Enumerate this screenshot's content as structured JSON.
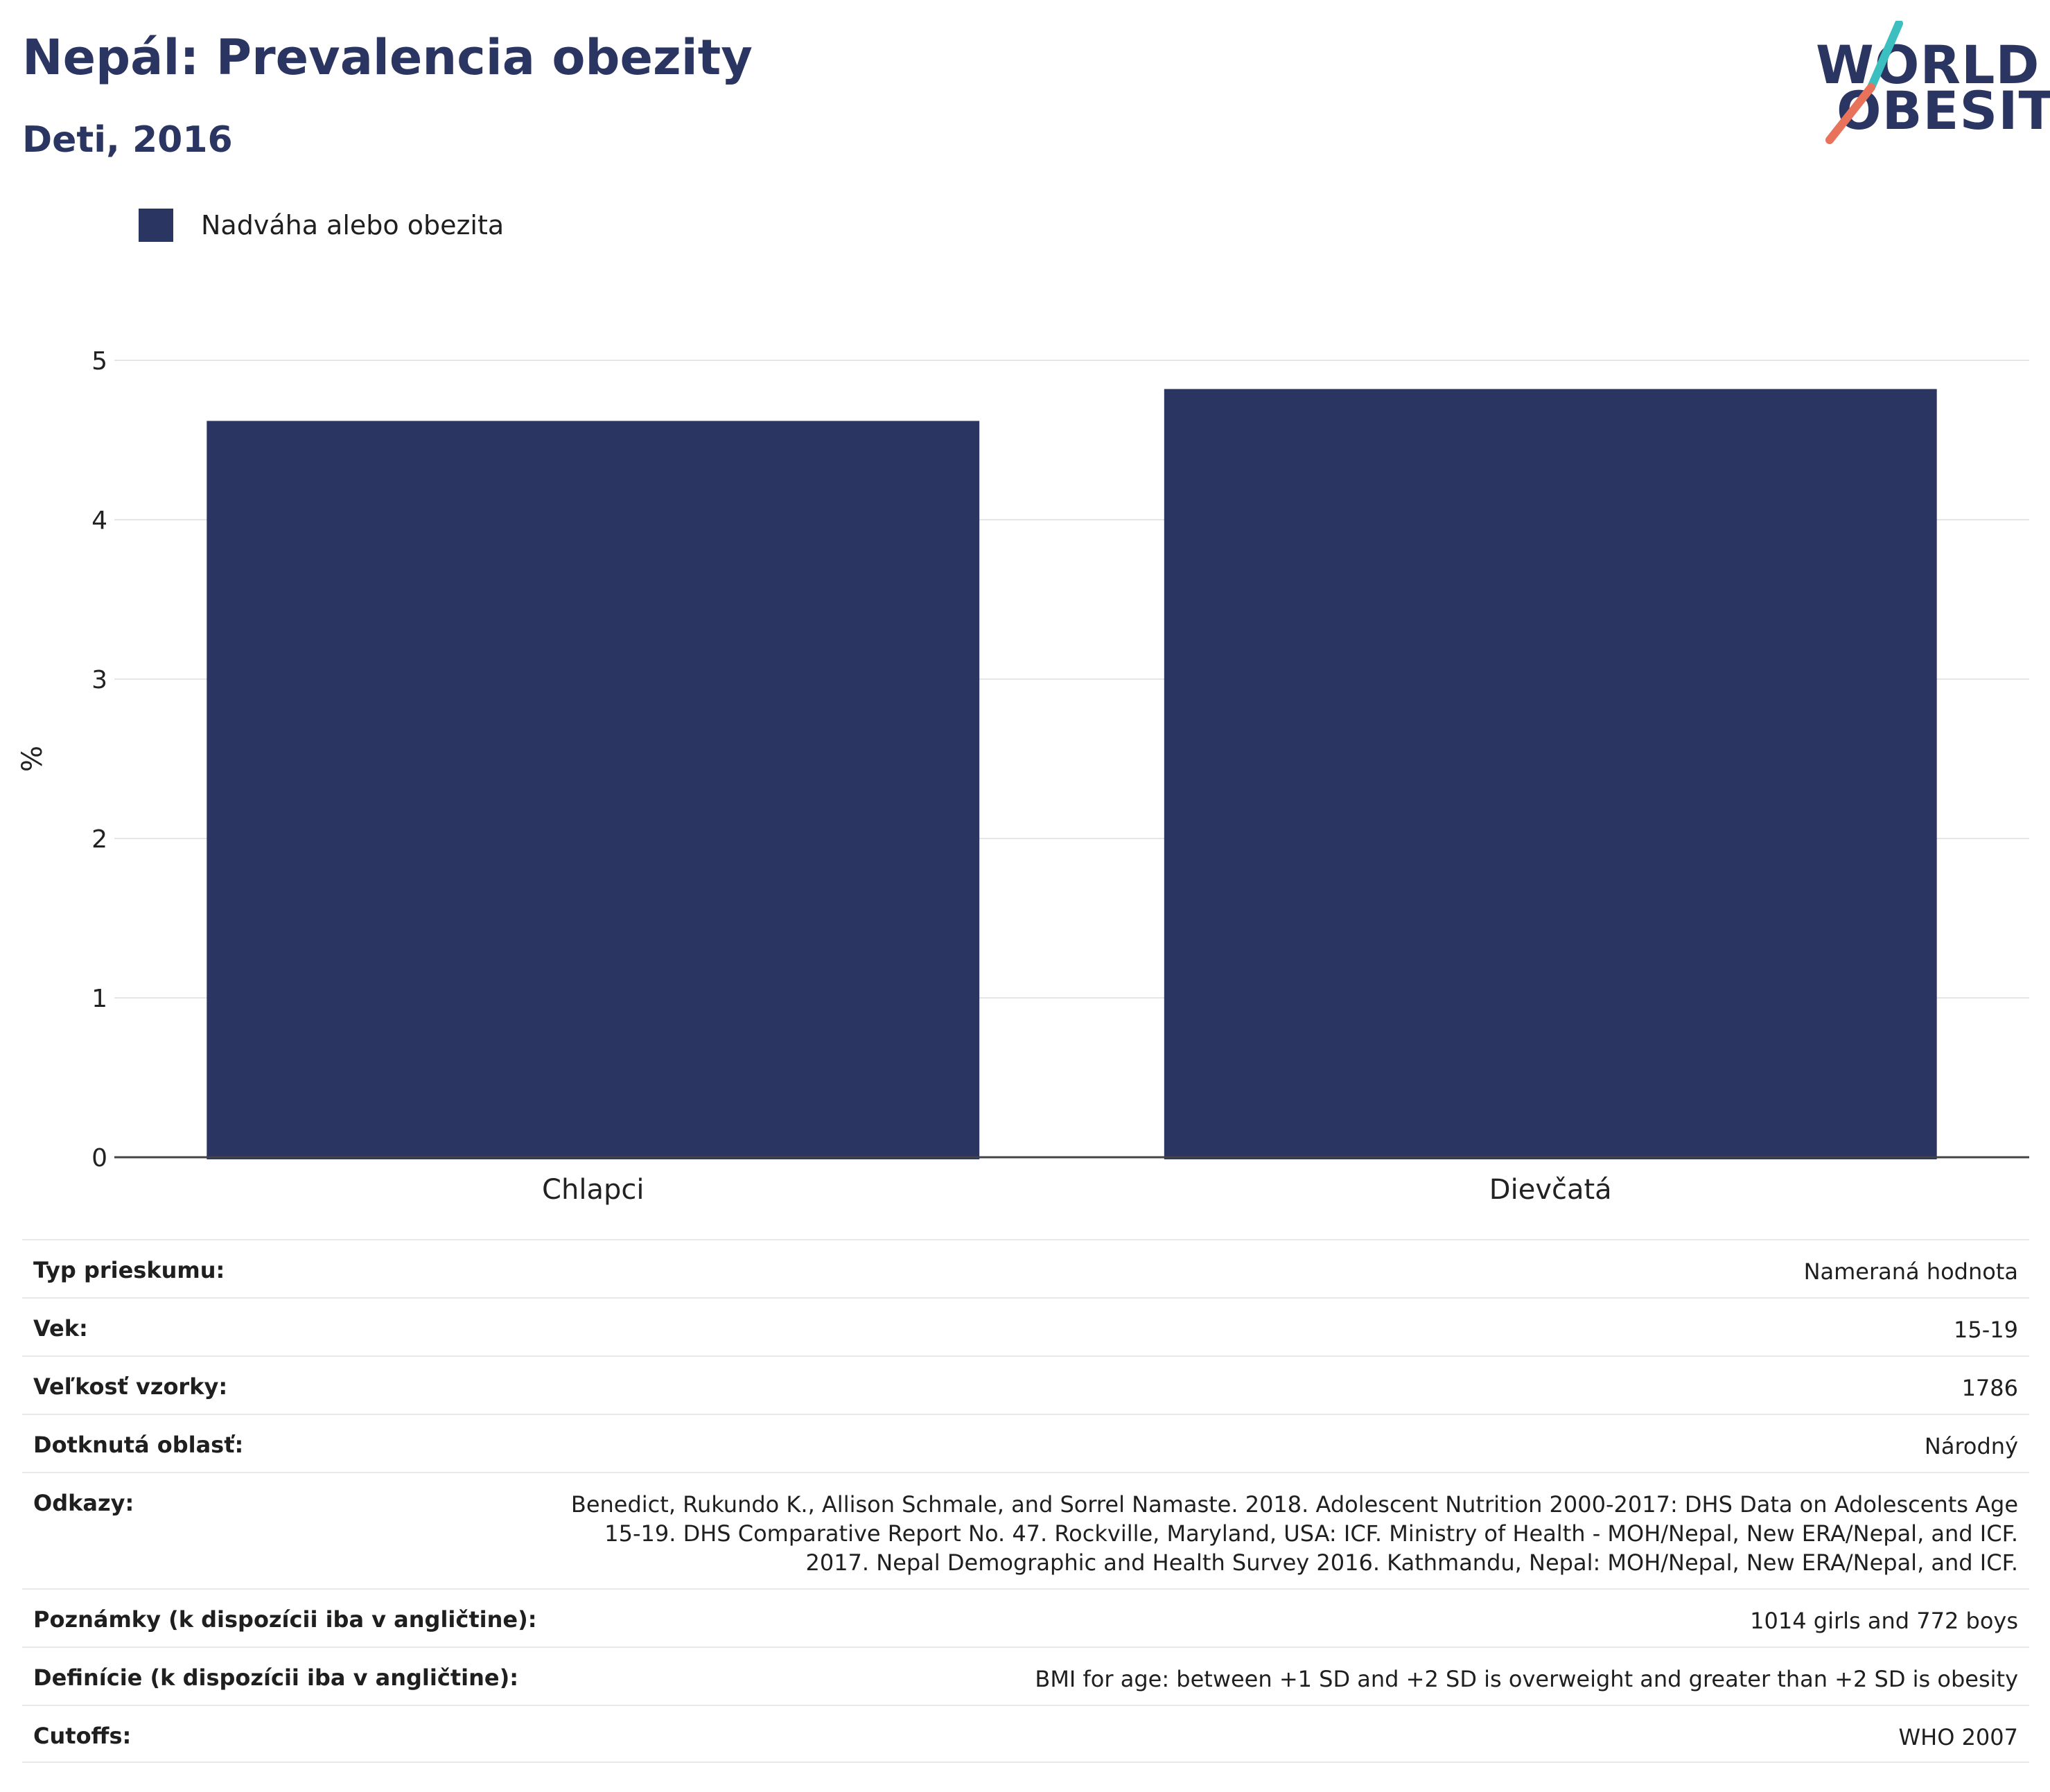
{
  "header": {
    "title": "Nepál: Prevalencia obezity",
    "subtitle": "Deti, 2016"
  },
  "logo": {
    "line1": "WORLD",
    "line2": "OBESITY",
    "slash_top_color": "#3bbfc0",
    "slash_bottom_color": "#e8735a"
  },
  "legend": {
    "items": [
      {
        "label": "Nadváha alebo obezita",
        "color": "#2b3561"
      }
    ]
  },
  "chart_data": {
    "type": "bar",
    "categories": [
      "Chlapci",
      "Dievčatá"
    ],
    "series": [
      {
        "name": "Nadváha alebo obezita",
        "values": [
          4.62,
          4.82
        ],
        "color": "#2b3561"
      }
    ],
    "ylabel": "%",
    "ylim": [
      0,
      5
    ],
    "yticks": [
      0,
      1,
      2,
      3,
      4,
      5
    ],
    "grid": true,
    "legend_position": "top-left"
  },
  "meta": {
    "rows": [
      {
        "label": "Typ prieskumu:",
        "value": "Nameraná hodnota"
      },
      {
        "label": "Vek:",
        "value": "15-19"
      },
      {
        "label": "Veľkosť vzorky:",
        "value": "1786"
      },
      {
        "label": "Dotknutá oblasť:",
        "value": "Národný"
      },
      {
        "label": "Odkazy:",
        "value": "Benedict, Rukundo K., Allison Schmale, and Sorrel Namaste. 2018. Adolescent Nutrition 2000-2017: DHS Data on Adolescents Age 15-19. DHS Comparative Report No. 47. Rockville, Maryland, USA: ICF. Ministry of Health - MOH/Nepal, New ERA/Nepal, and ICF. 2017. Nepal Demographic and Health Survey 2016. Kathmandu, Nepal: MOH/Nepal, New ERA/Nepal, and ICF."
      },
      {
        "label": "Poznámky (k dispozícii iba v angličtine):",
        "value": "1014 girls and 772 boys"
      },
      {
        "label": "Definície (k dispozícii iba v angličtine):",
        "value": "BMI for age: between +1 SD and +2 SD is overweight and greater than +2 SD is obesity"
      },
      {
        "label": "Cutoffs:",
        "value": "WHO 2007"
      }
    ]
  }
}
